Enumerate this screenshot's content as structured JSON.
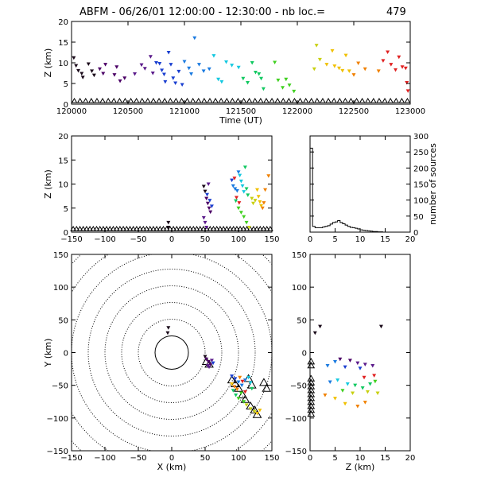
{
  "header": {
    "title": "ABFM - 06/26/01 12:00:00 - 12:30:00 - nb loc.=",
    "count": "479"
  },
  "chart_data": [
    {
      "id": "time-height",
      "type": "scatter",
      "xlabel": "Time (UT)",
      "ylabel": "Z (km)",
      "xlim": [
        120000,
        123000
      ],
      "ylim": [
        0,
        20
      ],
      "xticks": [
        "120000",
        "120500",
        "121000",
        "121500",
        "122000",
        "122500",
        "123000"
      ],
      "yticks": [
        "0",
        "5",
        "10",
        "15",
        "20"
      ],
      "points": [
        [
          120020,
          11.2
        ],
        [
          120040,
          9.3
        ],
        [
          120060,
          8.1
        ],
        [
          120090,
          7.4
        ],
        [
          120100,
          6.5
        ],
        [
          120150,
          9.7
        ],
        [
          120180,
          8.0
        ],
        [
          120200,
          7.0
        ],
        [
          120250,
          8.5
        ],
        [
          120280,
          7.4
        ],
        [
          120300,
          9.6
        ],
        [
          120380,
          7.1
        ],
        [
          120400,
          9.0
        ],
        [
          120430,
          5.6
        ],
        [
          120470,
          6.3
        ],
        [
          120560,
          7.3
        ],
        [
          120620,
          9.5
        ],
        [
          120650,
          8.6
        ],
        [
          120700,
          11.5
        ],
        [
          120720,
          7.5
        ],
        [
          120750,
          10.0
        ],
        [
          120780,
          9.8
        ],
        [
          120800,
          8.2
        ],
        [
          120820,
          7.2
        ],
        [
          120830,
          5.4
        ],
        [
          120860,
          12.5
        ],
        [
          120880,
          9.6
        ],
        [
          120900,
          6.3
        ],
        [
          120920,
          5.1
        ],
        [
          120950,
          7.9
        ],
        [
          120980,
          4.7
        ],
        [
          121000,
          10.3
        ],
        [
          121040,
          8.7
        ],
        [
          121060,
          7.3
        ],
        [
          121090,
          16.0
        ],
        [
          121130,
          9.6
        ],
        [
          121170,
          8.0
        ],
        [
          121220,
          8.5
        ],
        [
          121260,
          11.7
        ],
        [
          121300,
          6.0
        ],
        [
          121330,
          5.4
        ],
        [
          121370,
          10.2
        ],
        [
          121420,
          9.4
        ],
        [
          121480,
          8.9
        ],
        [
          121520,
          6.2
        ],
        [
          121560,
          5.2
        ],
        [
          121600,
          10.0
        ],
        [
          121630,
          7.7
        ],
        [
          121660,
          7.3
        ],
        [
          121680,
          6.2
        ],
        [
          121700,
          3.7
        ],
        [
          121800,
          10.1
        ],
        [
          121830,
          5.8
        ],
        [
          121870,
          4.0
        ],
        [
          121900,
          6.0
        ],
        [
          121930,
          4.6
        ],
        [
          121970,
          3.1
        ],
        [
          122150,
          8.5
        ],
        [
          122170,
          14.2
        ],
        [
          122200,
          10.8
        ],
        [
          122260,
          9.6
        ],
        [
          122310,
          12.9
        ],
        [
          122330,
          9.2
        ],
        [
          122370,
          8.7
        ],
        [
          122400,
          8.1
        ],
        [
          122430,
          11.8
        ],
        [
          122460,
          8.0
        ],
        [
          122500,
          7.1
        ],
        [
          122540,
          9.9
        ],
        [
          122600,
          8.5
        ],
        [
          122720,
          8.0
        ],
        [
          122760,
          10.5
        ],
        [
          122800,
          12.6
        ],
        [
          122830,
          9.6
        ],
        [
          122870,
          8.3
        ],
        [
          122900,
          11.4
        ],
        [
          122930,
          9.0
        ],
        [
          122960,
          8.7
        ],
        [
          122970,
          5.2
        ],
        [
          122980,
          3.2
        ]
      ]
    },
    {
      "id": "x-height",
      "type": "scatter",
      "ylabel": "Z (km)",
      "xlim": [
        -150,
        150
      ],
      "ylim": [
        0,
        20
      ],
      "xticks": [
        "−150",
        "−100",
        "−50",
        "0",
        "50",
        "100",
        "150"
      ],
      "yticks": [
        "0",
        "5",
        "10",
        "15",
        "20"
      ],
      "points": [
        [
          -5,
          2.0
        ],
        [
          -5,
          1.0
        ],
        [
          48,
          9.5
        ],
        [
          50,
          8.5
        ],
        [
          52,
          7.0
        ],
        [
          54,
          6.0
        ],
        [
          56,
          5.0
        ],
        [
          58,
          4.2
        ],
        [
          48,
          3.0
        ],
        [
          50,
          2.0
        ],
        [
          52,
          1.0
        ],
        [
          55,
          10.0
        ],
        [
          53,
          7.8
        ],
        [
          57,
          6.6
        ],
        [
          60,
          5.4
        ],
        [
          90,
          10.8
        ],
        [
          92,
          9.6
        ],
        [
          95,
          9.0
        ],
        [
          98,
          8.6
        ],
        [
          100,
          12.5
        ],
        [
          102,
          11.8
        ],
        [
          104,
          10.6
        ],
        [
          106,
          9.6
        ],
        [
          108,
          8.4
        ],
        [
          110,
          13.5
        ],
        [
          112,
          9.0
        ],
        [
          114,
          7.7
        ],
        [
          96,
          6.5
        ],
        [
          100,
          5.0
        ],
        [
          104,
          4.1
        ],
        [
          108,
          3.2
        ],
        [
          112,
          2.0
        ],
        [
          116,
          1.0
        ],
        [
          120,
          7.0
        ],
        [
          122,
          6.0
        ],
        [
          125,
          6.6
        ],
        [
          128,
          8.8
        ],
        [
          130,
          7.4
        ],
        [
          132,
          6.3
        ],
        [
          134,
          5.5
        ],
        [
          136,
          5.0
        ],
        [
          138,
          6.1
        ],
        [
          140,
          8.8
        ],
        [
          145,
          11.7
        ],
        [
          94,
          11.2
        ],
        [
          97,
          7.2
        ],
        [
          101,
          6.1
        ]
      ]
    },
    {
      "id": "histogram",
      "type": "bar",
      "xlabel": "",
      "ylabel": "number of sources",
      "xlim": [
        0,
        20
      ],
      "ylim": [
        0,
        300
      ],
      "xticks": [
        "0",
        "5",
        "10",
        "15",
        "20"
      ],
      "yticks": [
        "0",
        "50",
        "100",
        "150",
        "200",
        "250",
        "300"
      ],
      "bin_width": 0.5,
      "values": [
        262,
        18,
        14,
        14,
        14,
        16,
        18,
        20,
        25,
        30,
        32,
        36,
        30,
        26,
        22,
        18,
        15,
        14,
        12,
        10,
        7,
        6,
        5,
        4,
        3,
        2,
        2,
        1,
        1,
        0,
        0,
        0,
        0,
        0,
        0,
        0,
        0,
        0,
        0,
        0
      ]
    },
    {
      "id": "plan-view",
      "type": "scatter",
      "xlabel": "X (km)",
      "ylabel": "Y (km)",
      "xlim": [
        -150,
        150
      ],
      "ylim": [
        -150,
        150
      ],
      "xticks": [
        "−150",
        "−100",
        "−50",
        "0",
        "50",
        "100",
        "150"
      ],
      "yticks": [
        "−150",
        "−100",
        "−50",
        "0",
        "50",
        "100",
        "150"
      ],
      "range_rings_km": [
        25,
        50,
        75,
        100,
        125,
        150,
        175,
        200
      ],
      "points": [
        [
          -5,
          38
        ],
        [
          -6,
          30
        ],
        [
          50,
          -6
        ],
        [
          52,
          -10
        ],
        [
          55,
          -14
        ],
        [
          58,
          -18
        ],
        [
          56,
          -22
        ],
        [
          60,
          -12
        ],
        [
          54,
          -20
        ],
        [
          62,
          -16
        ],
        [
          90,
          -36
        ],
        [
          95,
          -40
        ],
        [
          100,
          -45
        ],
        [
          105,
          -50
        ],
        [
          110,
          -42
        ],
        [
          115,
          -38
        ],
        [
          118,
          -46
        ],
        [
          120,
          -55
        ],
        [
          92,
          -58
        ],
        [
          96,
          -65
        ],
        [
          100,
          -70
        ],
        [
          104,
          -62
        ],
        [
          108,
          -75
        ],
        [
          112,
          -80
        ],
        [
          118,
          -86
        ],
        [
          124,
          -90
        ],
        [
          128,
          -93
        ],
        [
          132,
          -88
        ],
        [
          90,
          -48
        ],
        [
          94,
          -52
        ],
        [
          98,
          -56
        ],
        [
          102,
          -38
        ],
        [
          106,
          -44
        ],
        [
          110,
          -60
        ]
      ],
      "stations": [
        [
          52,
          -14
        ],
        [
          56,
          -18
        ],
        [
          90,
          -42
        ],
        [
          95,
          -48
        ],
        [
          100,
          -55
        ],
        [
          106,
          -65
        ],
        [
          110,
          -72
        ],
        [
          118,
          -82
        ],
        [
          124,
          -88
        ],
        [
          128,
          -95
        ],
        [
          115,
          -40
        ],
        [
          120,
          -50
        ],
        [
          138,
          -46
        ],
        [
          142,
          -55
        ]
      ]
    },
    {
      "id": "z-y",
      "type": "scatter",
      "xlabel": "Z (km)",
      "xlim": [
        0,
        20
      ],
      "ylim": [
        -150,
        150
      ],
      "xticks": [
        "0",
        "5",
        "10",
        "15",
        "20"
      ],
      "yticks": [
        "−150",
        "−100",
        "−50",
        "0",
        "50",
        "100",
        "150"
      ],
      "points": [
        [
          2.0,
          40
        ],
        [
          1.0,
          30
        ],
        [
          14.2,
          40
        ],
        [
          6.0,
          -10
        ],
        [
          8.0,
          -12
        ],
        [
          9.5,
          -16
        ],
        [
          11.0,
          -18
        ],
        [
          12.5,
          -20
        ],
        [
          7.0,
          -22
        ],
        [
          10.0,
          -24
        ],
        [
          5.0,
          -14
        ],
        [
          3.5,
          -20
        ],
        [
          4.0,
          -45
        ],
        [
          5.5,
          -42
        ],
        [
          7.5,
          -48
        ],
        [
          9.0,
          -50
        ],
        [
          10.5,
          -54
        ],
        [
          12.0,
          -48
        ],
        [
          13.0,
          -44
        ],
        [
          6.5,
          -58
        ],
        [
          8.5,
          -62
        ],
        [
          11.5,
          -60
        ],
        [
          13.5,
          -62
        ],
        [
          5.0,
          -70
        ],
        [
          7.0,
          -78
        ],
        [
          9.5,
          -82
        ],
        [
          11.0,
          -76
        ],
        [
          3.0,
          -65
        ],
        [
          10.8,
          -38
        ],
        [
          12.8,
          -35
        ]
      ],
      "stations_z0": [
        -14,
        -20,
        -40,
        -46,
        -52,
        -58,
        -64,
        -70,
        -76,
        -82,
        -88,
        -94
      ]
    }
  ]
}
